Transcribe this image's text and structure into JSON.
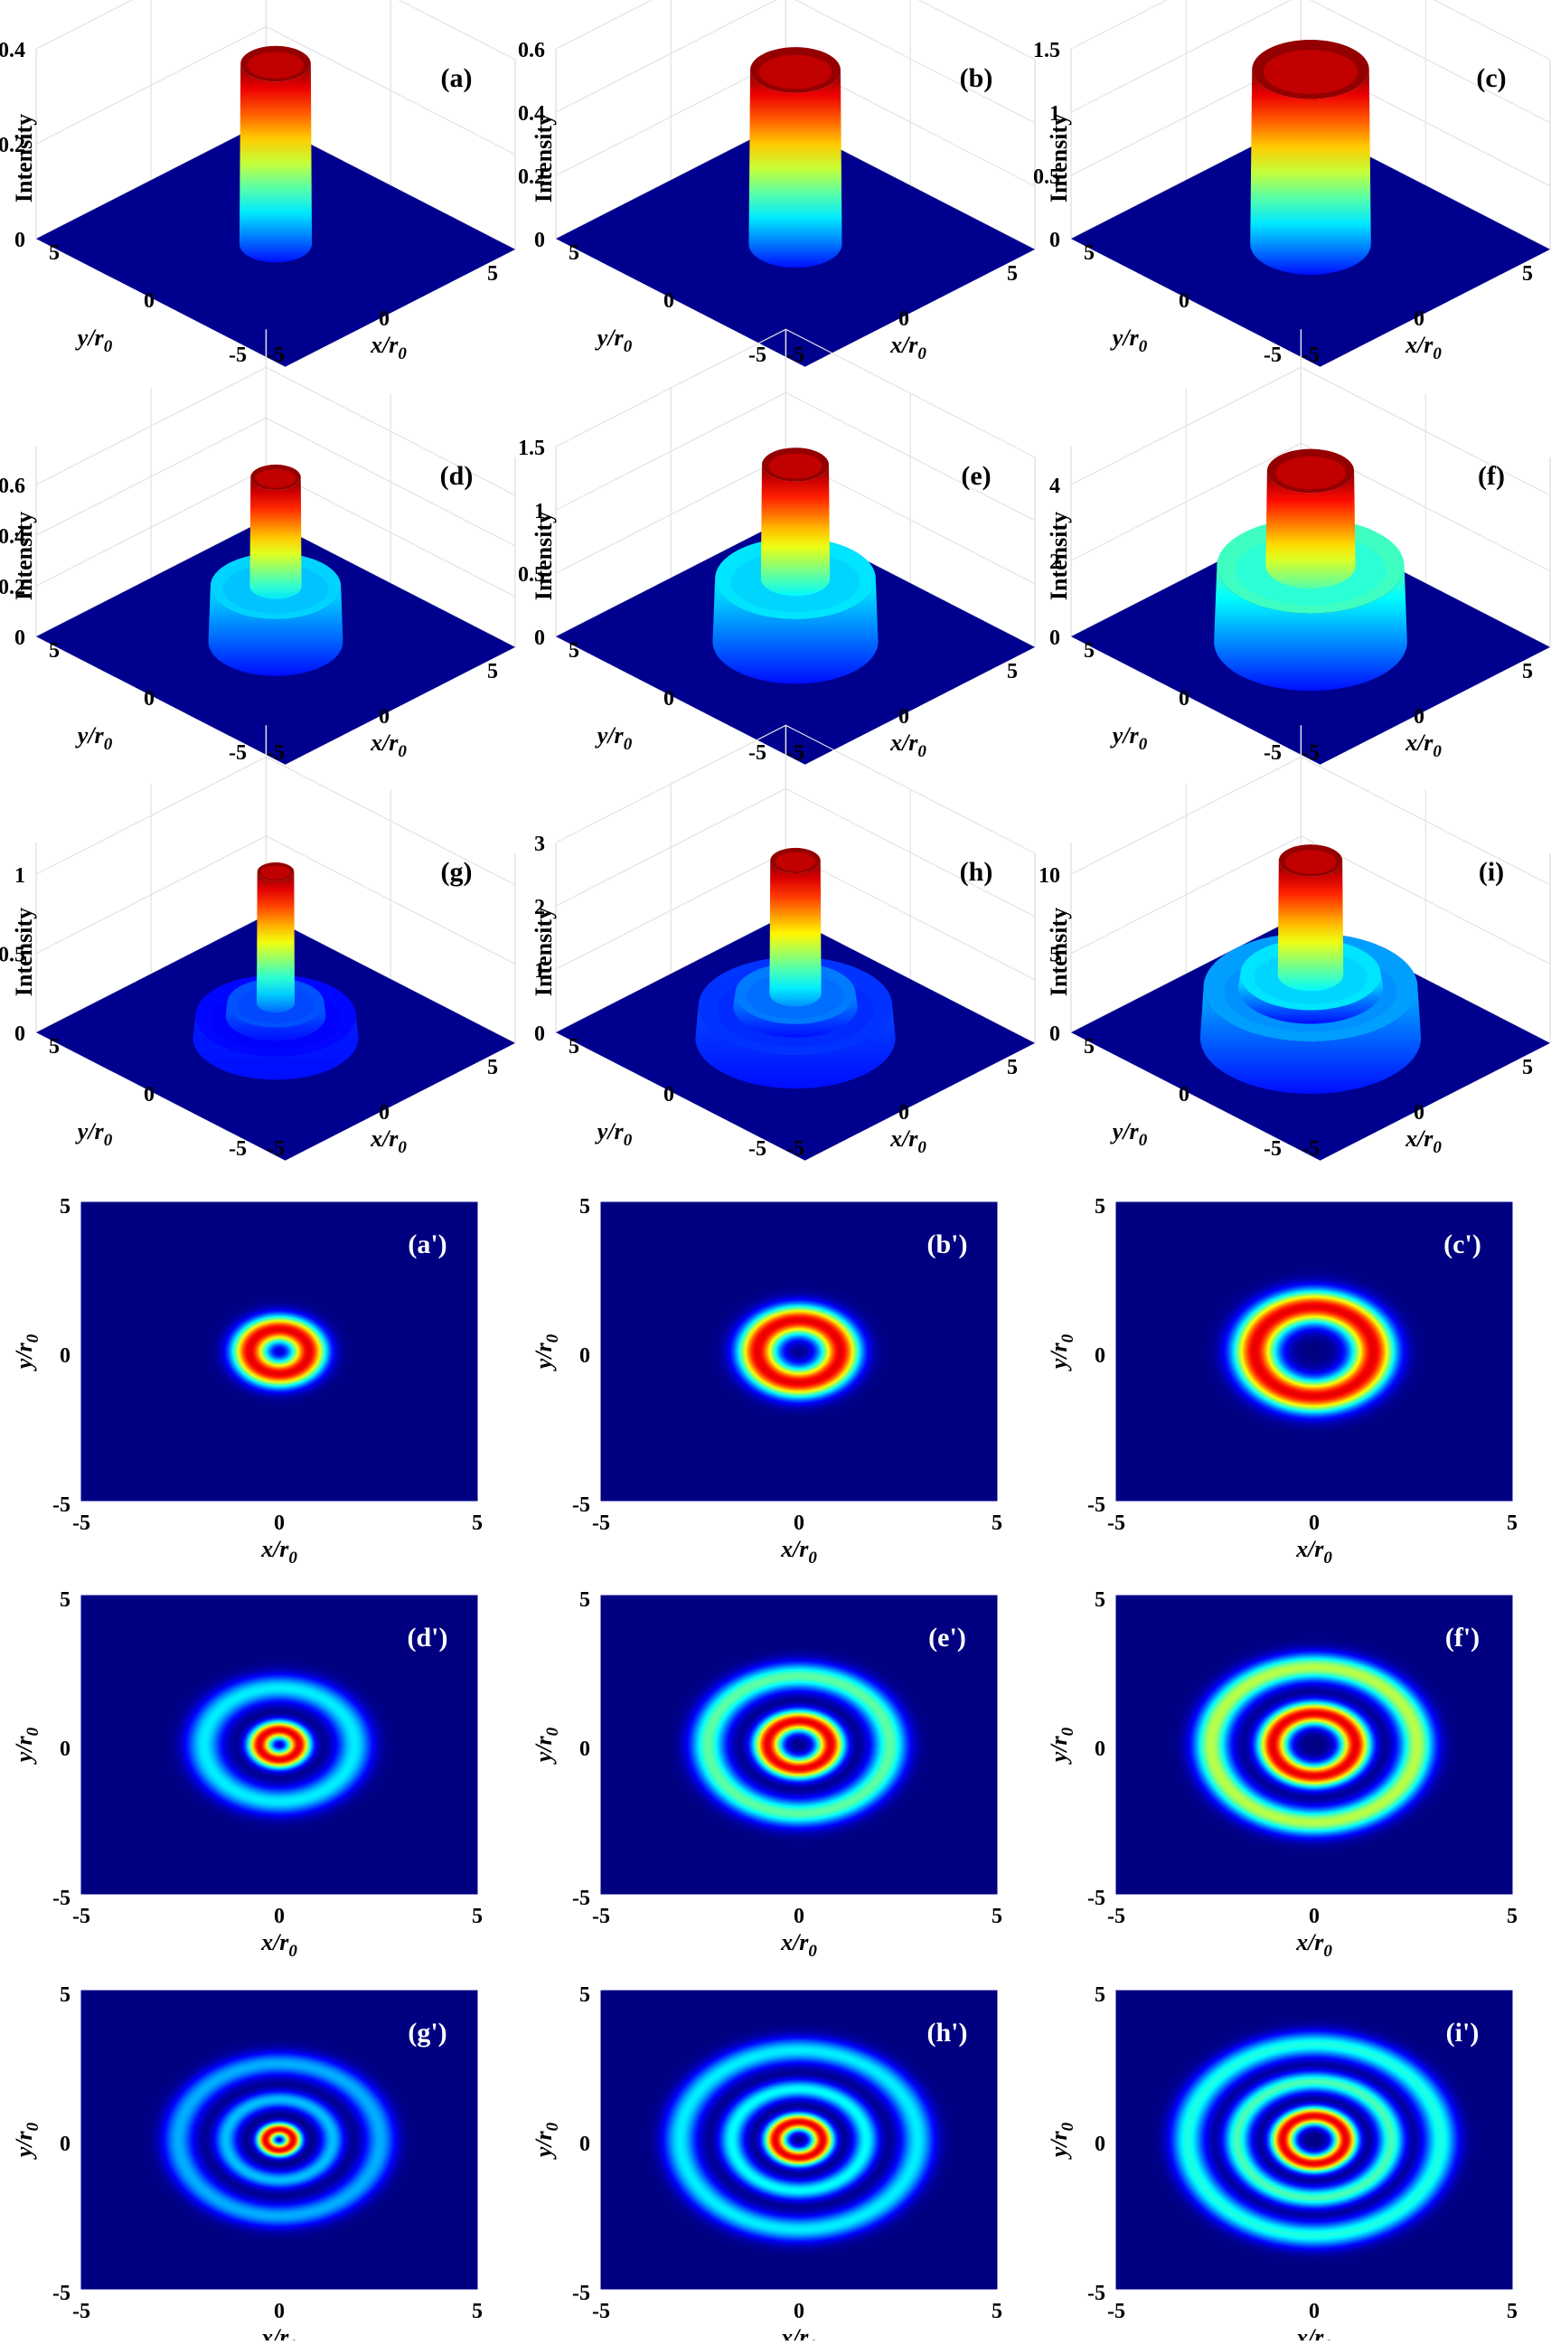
{
  "labels": {
    "intensity": "Intensity",
    "x_axis_main": "x/r",
    "y_axis_main": "y/r",
    "axis_sub": "0"
  },
  "colormap": "jet",
  "chart_data": [
    {
      "panel": "(a)",
      "type": "surface3d",
      "ring_counts": 0,
      "zlim": [
        0,
        0.4
      ],
      "zticks": [
        "0",
        "0.2",
        "0.4"
      ],
      "xticks": [
        "-5",
        "0",
        "5"
      ],
      "yticks": [
        "-5",
        "0",
        "5"
      ],
      "core_radius": 1.05,
      "inner_levels": [],
      "core_peak": 0.38
    },
    {
      "panel": "(b)",
      "type": "surface3d",
      "ring_counts": 0,
      "zlim": [
        0,
        0.6
      ],
      "zticks": [
        "0",
        "0.2",
        "0.4",
        "0.6"
      ],
      "xticks": [
        "-5",
        "0",
        "5"
      ],
      "yticks": [
        "-5",
        "0",
        "5"
      ],
      "core_radius": 1.35,
      "inner_levels": [],
      "core_peak": 0.55
    },
    {
      "panel": "(c)",
      "type": "surface3d",
      "ring_counts": 0,
      "zlim": [
        0,
        1.5
      ],
      "zticks": [
        "0",
        "0.5",
        "1",
        "1.5"
      ],
      "xticks": [
        "-5",
        "0",
        "5"
      ],
      "yticks": [
        "-5",
        "0",
        "5"
      ],
      "core_radius": 1.75,
      "inner_levels": [],
      "core_peak": 1.38
    },
    {
      "panel": "(d)",
      "type": "surface3d",
      "ring_counts": 1,
      "zlim": [
        0,
        0.75
      ],
      "zticks": [
        "0",
        "0.2",
        "0.4",
        "0.6"
      ],
      "xticks": [
        "-5",
        "0",
        "5"
      ],
      "yticks": [
        "-5",
        "0",
        "5"
      ],
      "core_radius": 0.75,
      "inner_levels": [
        {
          "radius": 1.95,
          "height": 0.22
        }
      ],
      "core_peak": 0.65
    },
    {
      "panel": "(e)",
      "type": "surface3d",
      "ring_counts": 1,
      "zlim": [
        0,
        1.5
      ],
      "zticks": [
        "0",
        "0.5",
        "1",
        "1.5"
      ],
      "xticks": [
        "-5",
        "0",
        "5"
      ],
      "yticks": [
        "-5",
        "0",
        "5"
      ],
      "core_radius": 1.0,
      "inner_levels": [
        {
          "radius": 2.4,
          "height": 0.5
        }
      ],
      "core_peak": 1.4
    },
    {
      "panel": "(f)",
      "type": "surface3d",
      "ring_counts": 1,
      "zlim": [
        0,
        5
      ],
      "zticks": [
        "0",
        "2",
        "4"
      ],
      "xticks": [
        "-5",
        "0",
        "5"
      ],
      "yticks": [
        "-5",
        "0",
        "5"
      ],
      "core_radius": 1.3,
      "inner_levels": [
        {
          "radius": 2.8,
          "height": 2.0
        }
      ],
      "core_peak": 4.5
    },
    {
      "panel": "(g)",
      "type": "surface3d",
      "ring_counts": 2,
      "zlim": [
        0,
        1.2
      ],
      "zticks": [
        "0",
        "0.5",
        "1"
      ],
      "xticks": [
        "-5",
        "0",
        "5"
      ],
      "yticks": [
        "-5",
        "0",
        "5"
      ],
      "core_radius": 0.55,
      "inner_levels": [
        {
          "radius": 1.45,
          "height": 0.22
        },
        {
          "radius": 2.4,
          "height": 0.14
        }
      ],
      "core_peak": 1.05
    },
    {
      "panel": "(h)",
      "type": "surface3d",
      "ring_counts": 2,
      "zlim": [
        0,
        3
      ],
      "zticks": [
        "0",
        "1",
        "2",
        "3"
      ],
      "xticks": [
        "-5",
        "0",
        "5"
      ],
      "yticks": [
        "-5",
        "0",
        "5"
      ],
      "core_radius": 0.75,
      "inner_levels": [
        {
          "radius": 1.8,
          "height": 0.7
        },
        {
          "radius": 2.9,
          "height": 0.5
        }
      ],
      "core_peak": 2.8
    },
    {
      "panel": "(i)",
      "type": "surface3d",
      "ring_counts": 2,
      "zlim": [
        0,
        12
      ],
      "zticks": [
        "0",
        "5",
        "10"
      ],
      "xticks": [
        "-5",
        "0",
        "5"
      ],
      "yticks": [
        "-5",
        "0",
        "5"
      ],
      "core_radius": 0.95,
      "inner_levels": [
        {
          "radius": 2.1,
          "height": 4.0
        },
        {
          "radius": 3.2,
          "height": 3.2
        }
      ],
      "core_peak": 11.2
    },
    {
      "panel": "(a')",
      "type": "heatmap",
      "xlim": [
        -5,
        5
      ],
      "ylim": [
        -5,
        5
      ],
      "xticks": [
        "-5",
        "0",
        "5"
      ],
      "yticks": [
        "-5",
        "0",
        "5"
      ],
      "rings": [
        {
          "r": 0.75,
          "w": 0.45,
          "peak": 1.0
        }
      ]
    },
    {
      "panel": "(b')",
      "type": "heatmap",
      "xlim": [
        -5,
        5
      ],
      "ylim": [
        -5,
        5
      ],
      "xticks": [
        "-5",
        "0",
        "5"
      ],
      "yticks": [
        "-5",
        "0",
        "5"
      ],
      "rings": [
        {
          "r": 1.05,
          "w": 0.5,
          "peak": 1.0
        }
      ]
    },
    {
      "panel": "(c')",
      "type": "heatmap",
      "xlim": [
        -5,
        5
      ],
      "ylim": [
        -5,
        5
      ],
      "xticks": [
        "-5",
        "0",
        "5"
      ],
      "yticks": [
        "-5",
        "0",
        "5"
      ],
      "rings": [
        {
          "r": 1.5,
          "w": 0.55,
          "peak": 1.0
        }
      ]
    },
    {
      "panel": "(d')",
      "type": "heatmap",
      "xlim": [
        -5,
        5
      ],
      "ylim": [
        -5,
        5
      ],
      "xticks": [
        "-5",
        "0",
        "5"
      ],
      "yticks": [
        "-5",
        "0",
        "5"
      ],
      "rings": [
        {
          "r": 0.5,
          "w": 0.3,
          "peak": 1.0
        },
        {
          "r": 1.9,
          "w": 0.45,
          "peak": 0.4
        }
      ]
    },
    {
      "panel": "(e')",
      "type": "heatmap",
      "xlim": [
        -5,
        5
      ],
      "ylim": [
        -5,
        5
      ],
      "xticks": [
        "-5",
        "0",
        "5"
      ],
      "yticks": [
        "-5",
        "0",
        "5"
      ],
      "rings": [
        {
          "r": 0.8,
          "w": 0.35,
          "peak": 1.0
        },
        {
          "r": 2.3,
          "w": 0.45,
          "peak": 0.52
        }
      ]
    },
    {
      "panel": "(f')",
      "type": "heatmap",
      "xlim": [
        -5,
        5
      ],
      "ylim": [
        -5,
        5
      ],
      "xticks": [
        "-5",
        "0",
        "5"
      ],
      "yticks": [
        "-5",
        "0",
        "5"
      ],
      "rings": [
        {
          "r": 1.05,
          "w": 0.38,
          "peak": 1.0
        },
        {
          "r": 2.6,
          "w": 0.45,
          "peak": 0.62
        }
      ]
    },
    {
      "panel": "(g')",
      "type": "heatmap",
      "xlim": [
        -5,
        5
      ],
      "ylim": [
        -5,
        5
      ],
      "xticks": [
        "-5",
        "0",
        "5"
      ],
      "yticks": [
        "-5",
        "0",
        "5"
      ],
      "rings": [
        {
          "r": 0.35,
          "w": 0.22,
          "peak": 1.0
        },
        {
          "r": 1.35,
          "w": 0.3,
          "peak": 0.35
        },
        {
          "r": 2.55,
          "w": 0.4,
          "peak": 0.33
        }
      ]
    },
    {
      "panel": "(h')",
      "type": "heatmap",
      "xlim": [
        -5,
        5
      ],
      "ylim": [
        -5,
        5
      ],
      "xticks": [
        "-5",
        "0",
        "5"
      ],
      "yticks": [
        "-5",
        "0",
        "5"
      ],
      "rings": [
        {
          "r": 0.6,
          "w": 0.28,
          "peak": 1.0
        },
        {
          "r": 1.7,
          "w": 0.32,
          "peak": 0.42
        },
        {
          "r": 3.0,
          "w": 0.42,
          "peak": 0.4
        }
      ]
    },
    {
      "panel": "(i')",
      "type": "heatmap",
      "xlim": [
        -5,
        5
      ],
      "ylim": [
        -5,
        5
      ],
      "xticks": [
        "-5",
        "0",
        "5"
      ],
      "yticks": [
        "-5",
        "0",
        "5"
      ],
      "rings": [
        {
          "r": 0.8,
          "w": 0.3,
          "peak": 1.0
        },
        {
          "r": 1.95,
          "w": 0.34,
          "peak": 0.5
        },
        {
          "r": 3.2,
          "w": 0.42,
          "peak": 0.45
        }
      ]
    }
  ]
}
